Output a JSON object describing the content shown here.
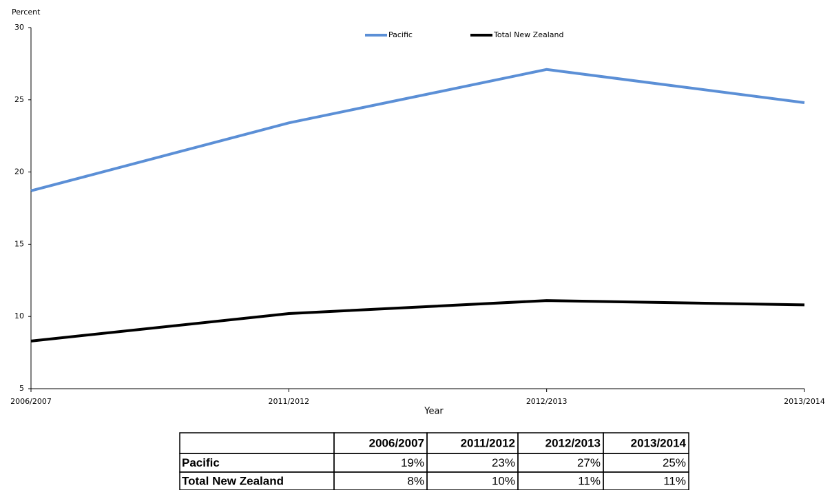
{
  "chart_data": {
    "type": "line",
    "ylabel": "Percent",
    "xlabel": "Year",
    "categories": [
      "2006/2007",
      "2011/2012",
      "2012/2013",
      "2013/2014"
    ],
    "series": [
      {
        "name": "Pacific",
        "color": "#5b8fd6",
        "values": [
          18.7,
          23.4,
          27.1,
          24.8
        ],
        "value_labels": [
          "19%",
          "23%",
          "27%",
          "25%"
        ]
      },
      {
        "name": "Total New Zealand",
        "color": "#000000",
        "values": [
          8.3,
          10.2,
          11.1,
          10.8
        ],
        "value_labels": [
          "8%",
          "10%",
          "11%",
          "11%"
        ]
      }
    ],
    "ylim": [
      5,
      30
    ],
    "yticks": [
      5,
      10,
      15,
      20,
      25,
      30
    ],
    "grid": false,
    "legend": "top",
    "data_table": true
  }
}
